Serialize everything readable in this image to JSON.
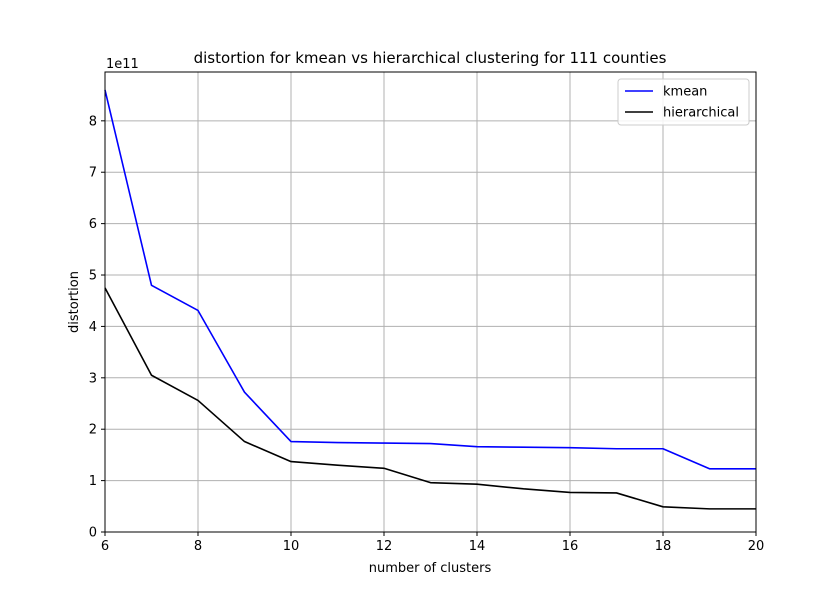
{
  "chart_data": {
    "type": "line",
    "title": "distortion for kmean vs hierarchical clustering for 111 counties",
    "xlabel": "number of clusters",
    "ylabel": "distortion",
    "y_multiplier": "1e11",
    "xlim": [
      6,
      20
    ],
    "ylim": [
      0,
      8.95
    ],
    "xticks": [
      6,
      8,
      10,
      12,
      14,
      16,
      18,
      20
    ],
    "yticks": [
      0,
      1,
      2,
      3,
      4,
      5,
      6,
      7,
      8
    ],
    "grid": true,
    "legend_position": "top-right",
    "x": [
      6,
      7,
      8,
      9,
      10,
      11,
      12,
      13,
      14,
      15,
      16,
      17,
      18,
      19,
      20
    ],
    "series": [
      {
        "name": "kmean",
        "color": "#0000ff",
        "values": [
          8.6,
          4.8,
          4.31,
          2.72,
          1.76,
          1.74,
          1.73,
          1.72,
          1.66,
          1.65,
          1.64,
          1.62,
          1.62,
          1.23,
          1.23
        ]
      },
      {
        "name": "hierarchical",
        "color": "#000000",
        "values": [
          4.75,
          3.05,
          2.56,
          1.76,
          1.37,
          1.3,
          1.24,
          0.96,
          0.93,
          0.84,
          0.77,
          0.76,
          0.49,
          0.45,
          0.45
        ]
      }
    ]
  }
}
